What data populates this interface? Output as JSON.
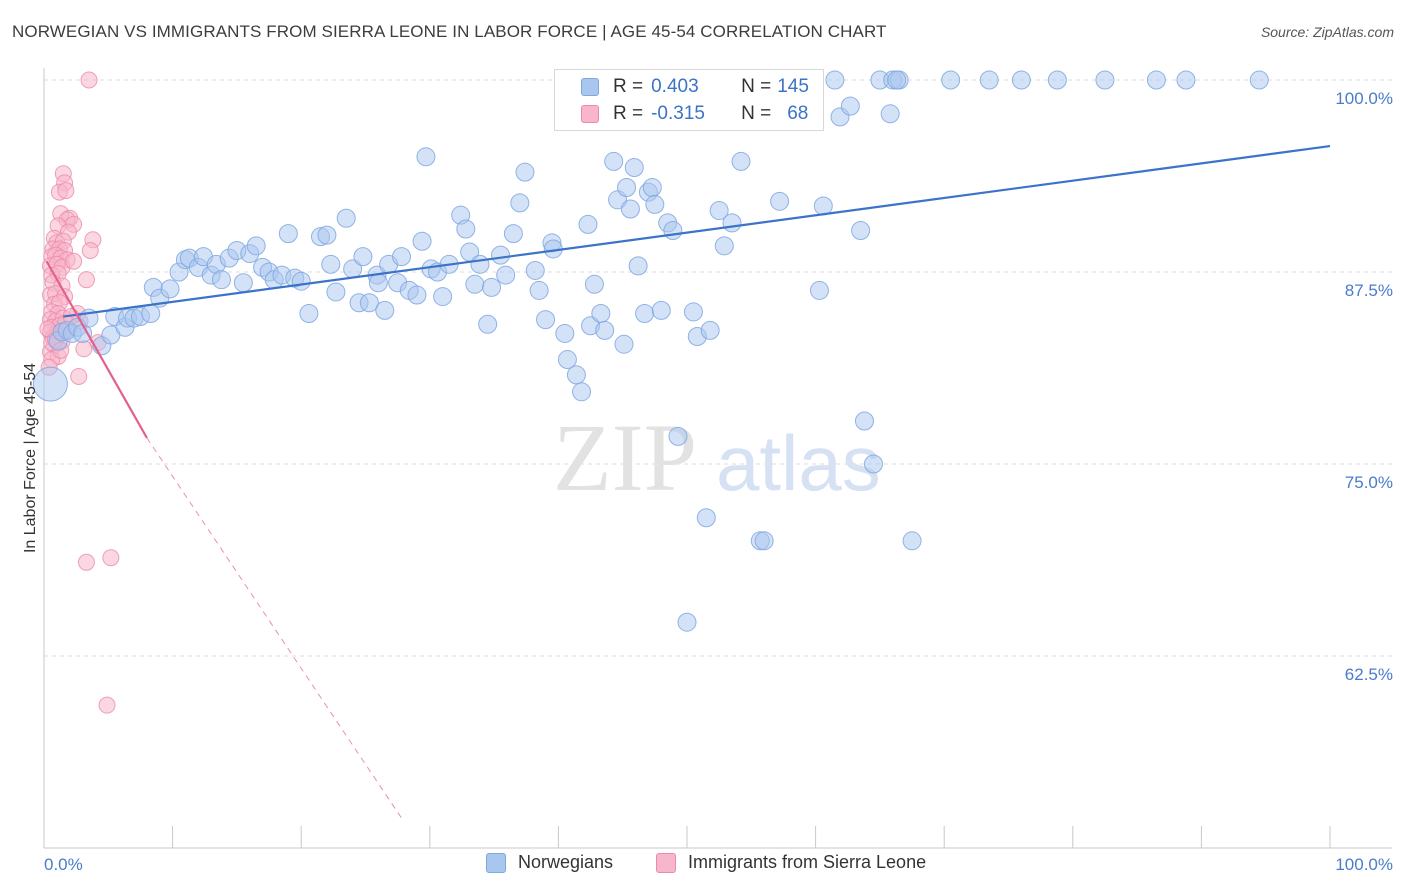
{
  "title": "NORWEGIAN VS IMMIGRANTS FROM SIERRA LEONE IN LABOR FORCE | AGE 45-54 CORRELATION CHART",
  "source": "Source: ZipAtlas.com",
  "watermark": {
    "part1": "ZIP",
    "part2": "atlas"
  },
  "legend": {
    "rows": [
      {
        "r_label": "R = ",
        "r_value": "0.403",
        "n_label": "N = ",
        "n_value": "145"
      },
      {
        "r_label": "R = ",
        "r_value": "-0.315",
        "n_label": "N = ",
        "n_value": "68"
      }
    ]
  },
  "bottom_legend": [
    "Norwegians",
    "Immigrants from Sierra Leone"
  ],
  "colors": {
    "blue_fill": "#a9c6ef",
    "blue_stroke": "#7fa7e0",
    "blue_line": "#3b73c8",
    "pink_fill": "#f7b6cb",
    "pink_stroke": "#ec8aab",
    "pink_line": "#e2608a",
    "axis_text": "#4a7cc9",
    "grid": "#dcdcdc"
  },
  "chart_data": {
    "type": "scatter",
    "title": "NORWEGIAN VS IMMIGRANTS FROM SIERRA LEONE IN LABOR FORCE | AGE 45-54 CORRELATION CHART",
    "xlabel": "",
    "ylabel": "In Labor Force | Age 45-54",
    "xlim": [
      0,
      100
    ],
    "ylim": [
      51.7,
      102
    ],
    "x_tick_labels": [
      "0.0%",
      "100.0%"
    ],
    "y_ticks": [
      62.5,
      75.0,
      87.5,
      100.0
    ],
    "y_tick_labels": [
      "62.5%",
      "75.0%",
      "87.5%",
      "100.0%"
    ],
    "grid": true,
    "legend_position": "top-center",
    "series": [
      {
        "name": "Norwegians",
        "r": 0.403,
        "n": 145,
        "trend": {
          "x": [
            1.5,
            100
          ],
          "y": [
            84.6,
            95.7
          ],
          "style": "solid"
        },
        "points": [
          [
            0.5,
            80.2
          ],
          [
            1.1,
            83.0
          ],
          [
            1.4,
            83.6
          ],
          [
            1.8,
            83.7
          ],
          [
            2.2,
            83.5
          ],
          [
            2.6,
            83.9
          ],
          [
            3.0,
            83.5
          ],
          [
            3.5,
            84.5
          ],
          [
            4.5,
            82.7
          ],
          [
            5.2,
            83.4
          ],
          [
            5.5,
            84.6
          ],
          [
            6.3,
            83.9
          ],
          [
            6.5,
            84.5
          ],
          [
            7.0,
            84.5
          ],
          [
            7.5,
            84.6
          ],
          [
            8.3,
            84.8
          ],
          [
            8.5,
            86.5
          ],
          [
            9.0,
            85.8
          ],
          [
            9.8,
            86.4
          ],
          [
            10.5,
            87.5
          ],
          [
            11.0,
            88.3
          ],
          [
            11.3,
            88.4
          ],
          [
            12.0,
            87.8
          ],
          [
            12.4,
            88.5
          ],
          [
            13.0,
            87.3
          ],
          [
            13.4,
            88.0
          ],
          [
            13.8,
            87.0
          ],
          [
            14.4,
            88.4
          ],
          [
            15.0,
            88.9
          ],
          [
            15.5,
            86.8
          ],
          [
            16.0,
            88.7
          ],
          [
            16.5,
            89.2
          ],
          [
            17.0,
            87.8
          ],
          [
            17.5,
            87.5
          ],
          [
            17.9,
            87.0
          ],
          [
            18.5,
            87.3
          ],
          [
            19.0,
            90.0
          ],
          [
            19.5,
            87.1
          ],
          [
            20.0,
            86.9
          ],
          [
            20.6,
            84.8
          ],
          [
            21.5,
            89.8
          ],
          [
            22.0,
            89.9
          ],
          [
            22.3,
            88.0
          ],
          [
            22.7,
            86.2
          ],
          [
            23.5,
            91.0
          ],
          [
            24.0,
            87.7
          ],
          [
            24.5,
            85.5
          ],
          [
            24.8,
            88.5
          ],
          [
            25.3,
            85.5
          ],
          [
            25.9,
            87.3
          ],
          [
            26.0,
            86.8
          ],
          [
            26.5,
            85.0
          ],
          [
            26.8,
            88.0
          ],
          [
            27.5,
            86.8
          ],
          [
            27.8,
            88.5
          ],
          [
            28.4,
            86.3
          ],
          [
            29.0,
            86.0
          ],
          [
            29.4,
            89.5
          ],
          [
            29.7,
            95.0
          ],
          [
            30.1,
            87.7
          ],
          [
            30.6,
            87.5
          ],
          [
            31.0,
            85.9
          ],
          [
            31.5,
            88.0
          ],
          [
            32.4,
            91.2
          ],
          [
            32.8,
            90.3
          ],
          [
            33.1,
            88.8
          ],
          [
            33.5,
            86.7
          ],
          [
            33.9,
            88.0
          ],
          [
            34.5,
            84.1
          ],
          [
            34.8,
            86.5
          ],
          [
            35.5,
            88.6
          ],
          [
            35.9,
            87.3
          ],
          [
            36.5,
            90.0
          ],
          [
            37.0,
            92.0
          ],
          [
            37.4,
            94.0
          ],
          [
            38.2,
            87.6
          ],
          [
            38.5,
            86.3
          ],
          [
            39.0,
            84.4
          ],
          [
            39.5,
            89.4
          ],
          [
            39.6,
            89.0
          ],
          [
            40.5,
            83.5
          ],
          [
            40.7,
            81.8
          ],
          [
            41.4,
            80.8
          ],
          [
            41.8,
            79.7
          ],
          [
            42.3,
            90.6
          ],
          [
            42.5,
            84.0
          ],
          [
            42.8,
            86.7
          ],
          [
            43.3,
            84.8
          ],
          [
            43.6,
            83.7
          ],
          [
            44.3,
            94.7
          ],
          [
            44.6,
            92.2
          ],
          [
            45.1,
            82.8
          ],
          [
            45.3,
            93.0
          ],
          [
            45.6,
            91.6
          ],
          [
            45.9,
            94.3
          ],
          [
            46.2,
            87.9
          ],
          [
            46.7,
            84.8
          ],
          [
            47.0,
            92.7
          ],
          [
            47.3,
            93.0
          ],
          [
            47.5,
            91.9
          ],
          [
            48.0,
            85.0
          ],
          [
            48.5,
            90.7
          ],
          [
            48.9,
            90.2
          ],
          [
            49.3,
            76.8
          ],
          [
            50.0,
            64.7
          ],
          [
            50.5,
            84.9
          ],
          [
            50.8,
            83.3
          ],
          [
            51.5,
            71.5
          ],
          [
            51.8,
            83.7
          ],
          [
            52.5,
            91.5
          ],
          [
            52.9,
            89.2
          ],
          [
            53.5,
            90.7
          ],
          [
            54.2,
            94.7
          ],
          [
            55.0,
            100.0
          ],
          [
            55.7,
            70.0
          ],
          [
            56.0,
            70.0
          ],
          [
            56.5,
            100.0
          ],
          [
            57.2,
            92.1
          ],
          [
            57.8,
            100.0
          ],
          [
            58.5,
            99.2
          ],
          [
            59.6,
            100.0
          ],
          [
            60.3,
            86.3
          ],
          [
            60.6,
            91.8
          ],
          [
            61.5,
            100.0
          ],
          [
            61.9,
            97.6
          ],
          [
            62.7,
            98.3
          ],
          [
            63.5,
            90.2
          ],
          [
            63.8,
            77.8
          ],
          [
            64.5,
            75.0
          ],
          [
            65.0,
            100.0
          ],
          [
            65.8,
            97.8
          ],
          [
            66.0,
            100.0
          ],
          [
            66.5,
            100.0
          ],
          [
            67.5,
            70.0
          ],
          [
            70.5,
            100.0
          ],
          [
            73.5,
            100.0
          ],
          [
            76.0,
            100.0
          ],
          [
            78.8,
            100.0
          ],
          [
            82.5,
            100.0
          ],
          [
            86.5,
            100.0
          ],
          [
            88.8,
            100.0
          ],
          [
            94.5,
            100.0
          ],
          [
            54.8,
            100.0
          ],
          [
            56.8,
            100.0
          ],
          [
            66.3,
            100.0
          ]
        ]
      },
      {
        "name": "Immigrants from Sierra Leone",
        "r": -0.315,
        "n": 68,
        "trend": {
          "x": [
            0.2,
            8.0,
            28.0
          ],
          "y": [
            88.2,
            76.7,
            51.7
          ],
          "style": "solid-then-dashed"
        },
        "points": [
          [
            3.5,
            100.0
          ],
          [
            1.5,
            93.9
          ],
          [
            1.6,
            93.3
          ],
          [
            1.2,
            92.7
          ],
          [
            1.7,
            92.8
          ],
          [
            1.3,
            91.3
          ],
          [
            2.0,
            91.0
          ],
          [
            1.8,
            90.9
          ],
          [
            1.1,
            90.5
          ],
          [
            2.3,
            90.6
          ],
          [
            1.9,
            90.1
          ],
          [
            0.8,
            89.7
          ],
          [
            1.0,
            89.4
          ],
          [
            1.5,
            89.5
          ],
          [
            3.8,
            89.6
          ],
          [
            0.7,
            89.0
          ],
          [
            1.2,
            89.0
          ],
          [
            1.6,
            88.9
          ],
          [
            3.6,
            88.9
          ],
          [
            0.6,
            88.5
          ],
          [
            0.9,
            88.6
          ],
          [
            1.3,
            88.4
          ],
          [
            1.8,
            88.3
          ],
          [
            0.5,
            87.9
          ],
          [
            1.0,
            88.0
          ],
          [
            1.4,
            87.8
          ],
          [
            0.6,
            87.3
          ],
          [
            1.1,
            87.4
          ],
          [
            3.3,
            87.0
          ],
          [
            0.7,
            86.8
          ],
          [
            1.4,
            86.6
          ],
          [
            0.5,
            86.0
          ],
          [
            0.9,
            86.1
          ],
          [
            1.6,
            85.9
          ],
          [
            0.8,
            85.4
          ],
          [
            1.2,
            85.5
          ],
          [
            0.6,
            84.9
          ],
          [
            1.1,
            84.8
          ],
          [
            2.6,
            84.8
          ],
          [
            0.5,
            84.4
          ],
          [
            0.9,
            84.3
          ],
          [
            1.5,
            84.5
          ],
          [
            2.8,
            84.3
          ],
          [
            0.6,
            83.9
          ],
          [
            1.2,
            84.0
          ],
          [
            0.5,
            83.6
          ],
          [
            1.0,
            83.5
          ],
          [
            1.8,
            83.7
          ],
          [
            0.7,
            83.2
          ],
          [
            1.4,
            83.0
          ],
          [
            0.8,
            82.7
          ],
          [
            0.5,
            82.3
          ],
          [
            1.1,
            82.0
          ],
          [
            0.6,
            81.8
          ],
          [
            0.4,
            81.3
          ],
          [
            2.7,
            80.7
          ],
          [
            4.2,
            82.9
          ],
          [
            3.1,
            82.5
          ],
          [
            0.6,
            82.9
          ],
          [
            1.7,
            84.2
          ],
          [
            2.1,
            84.6
          ],
          [
            0.3,
            83.8
          ],
          [
            2.3,
            88.2
          ],
          [
            3.3,
            68.6
          ],
          [
            5.2,
            68.9
          ],
          [
            4.9,
            59.3
          ],
          [
            0.9,
            83.1
          ],
          [
            1.3,
            82.4
          ]
        ]
      }
    ]
  }
}
